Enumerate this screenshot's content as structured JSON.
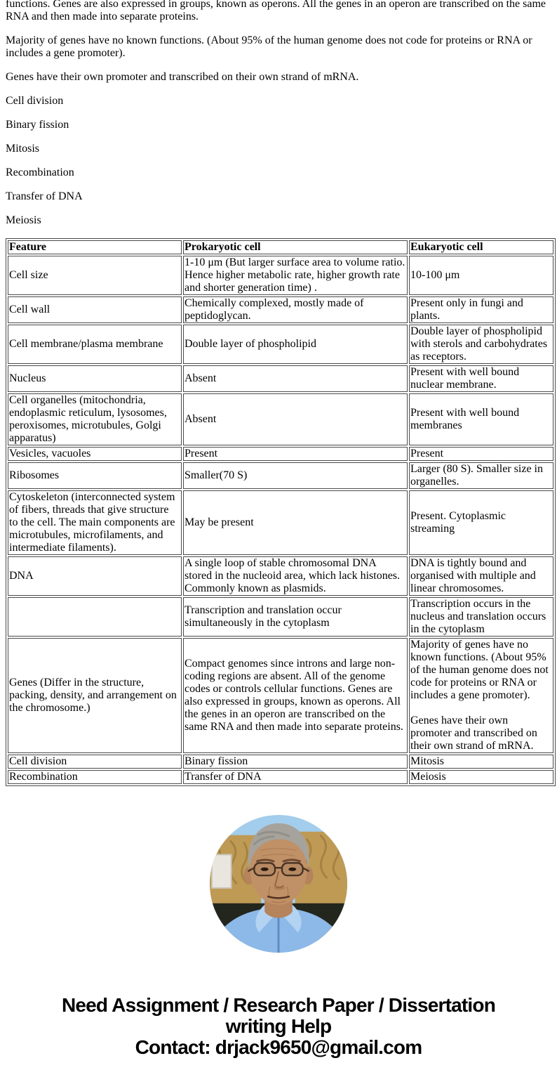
{
  "page": {
    "intro_paragraphs": [
      "functions. Genes are also expressed in groups, known as operons. All the genes in an operon are transcribed on the same RNA and then made into separate proteins.",
      "Majority of genes have no known functions. (About 95% of the human genome does not code for proteins or RNA or includes a gene promoter).",
      "Genes have their own promoter and transcribed on their own strand of mRNA."
    ],
    "keywords": [
      "Cell division",
      "Binary fission",
      "Mitosis",
      "Recombination",
      "Transfer of DNA",
      "Meiosis"
    ]
  },
  "table": {
    "headers": [
      "Feature",
      "Prokaryotic cell",
      "Eukaryotic cell"
    ],
    "rows": [
      [
        "Cell size",
        "1-10 μm (But larger surface area to volume ratio. Hence higher metabolic rate, higher growth rate and shorter generation time) .",
        "10-100 μm"
      ],
      [
        "Cell wall",
        "Chemically complexed, mostly made of peptidoglycan.",
        "Present only in fungi and plants."
      ],
      [
        "Cell membrane/plasma membrane",
        "Double layer of phospholipid",
        "Double layer of phospholipid with sterols and carbohydrates as receptors."
      ],
      [
        "Nucleus",
        "Absent",
        "Present with well bound nuclear membrane."
      ],
      [
        "Cell organelles (mitochondria, endoplasmic reticulum, lysosomes, peroxisomes, microtubules, Golgi apparatus)",
        "Absent",
        "Present with well bound membranes"
      ],
      [
        "Vesicles, vacuoles",
        "Present",
        "Present"
      ],
      [
        "Ribosomes",
        "Smaller(70 S)",
        "Larger (80 S). Smaller size in organelles."
      ],
      [
        "Cytoskeleton (interconnected system of fibers, threads that give structure to the cell. The main components are microtubules, microfilaments, and intermediate filaments).",
        "May be present",
        "Present. Cytoplasmic streaming"
      ],
      [
        "DNA",
        "A single loop of stable chromosomal DNA stored in the nucleoid area, which lack histones. Commonly known as plasmids.",
        "DNA is tightly bound and organised with multiple and linear chromosomes."
      ],
      [
        "",
        "Transcription and translation occur simultaneously in the cytoplasm",
        "Transcription occurs in the nucleus and translation occurs in the cytoplasm"
      ],
      [
        "Genes (Differ in the structure, packing, density, and arrangement on the chromosome.)",
        "Compact genomes since introns and large non-coding regions are absent. All of the genome codes or controls cellular functions. Genes are also expressed in groups, known as operons. All the genes in an operon are transcribed on the same RNA and then made into separate proteins.",
        "Majority of genes have no known functions. (About 95% of the human genome does not code for proteins or RNA or includes a gene promoter).\n\nGenes have their own promoter and transcribed on their own strand of mRNA."
      ],
      [
        "Cell division",
        "Binary fission",
        "Mitosis"
      ],
      [
        "Recombination",
        "Transfer of DNA",
        "Meiosis"
      ]
    ]
  },
  "footer": {
    "lines": [
      "Need Assignment / Research Paper / Dissertation",
      "writing Help",
      "Contact: drjack9650@gmail.com"
    ]
  },
  "colors": {
    "table_border": "#4a4a4a",
    "text": "#000000"
  }
}
